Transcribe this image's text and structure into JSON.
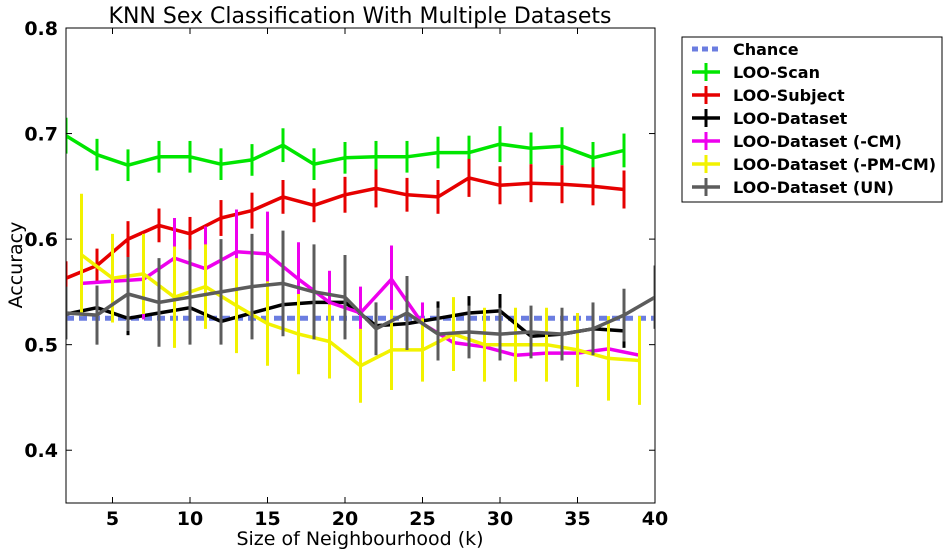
{
  "chart_data": {
    "type": "line",
    "title": "KNN Sex Classification With Multiple Datasets",
    "xlabel": "Size of Neighbourhood (k)",
    "ylabel": "Accuracy",
    "xlim": [
      2,
      40
    ],
    "ylim": [
      0.35,
      0.8
    ],
    "xticks": [
      5,
      10,
      15,
      20,
      25,
      30,
      35,
      40
    ],
    "yticks": [
      0.4,
      0.5,
      0.6,
      0.7,
      0.8
    ],
    "ytick_labels": [
      "0.4",
      "0.5",
      "0.6",
      "0.7",
      "0.8"
    ],
    "grid": false,
    "legend_position": "outside-right",
    "chance": {
      "name": "Chance",
      "value": 0.525,
      "color": "#6b7de0"
    },
    "series": [
      {
        "name": "LOO-Scan",
        "color": "#00e600",
        "x": [
          2,
          4,
          6,
          8,
          10,
          12,
          14,
          16,
          18,
          20,
          22,
          24,
          26,
          28,
          30,
          32,
          34,
          36,
          38
        ],
        "y": [
          0.698,
          0.68,
          0.67,
          0.678,
          0.678,
          0.671,
          0.675,
          0.689,
          0.671,
          0.677,
          0.678,
          0.678,
          0.682,
          0.682,
          0.69,
          0.686,
          0.688,
          0.677,
          0.684
        ],
        "err": [
          0.017,
          0.015,
          0.015,
          0.015,
          0.015,
          0.015,
          0.015,
          0.016,
          0.015,
          0.015,
          0.015,
          0.015,
          0.015,
          0.016,
          0.017,
          0.015,
          0.018,
          0.015,
          0.016
        ]
      },
      {
        "name": "LOO-Subject",
        "color": "#e60000",
        "x": [
          2,
          4,
          6,
          8,
          10,
          12,
          14,
          16,
          18,
          20,
          22,
          24,
          26,
          28,
          30,
          32,
          34,
          36,
          38
        ],
        "y": [
          0.563,
          0.575,
          0.6,
          0.613,
          0.605,
          0.62,
          0.627,
          0.64,
          0.632,
          0.642,
          0.648,
          0.642,
          0.64,
          0.658,
          0.651,
          0.653,
          0.652,
          0.65,
          0.647
        ],
        "err": [
          0.016,
          0.016,
          0.017,
          0.016,
          0.016,
          0.017,
          0.017,
          0.016,
          0.016,
          0.017,
          0.018,
          0.016,
          0.016,
          0.018,
          0.018,
          0.018,
          0.018,
          0.018,
          0.018
        ]
      },
      {
        "name": "LOO-Dataset",
        "color": "#000000",
        "x": [
          2,
          4,
          6,
          8,
          10,
          12,
          14,
          16,
          18,
          20,
          22,
          24,
          26,
          28,
          30,
          32,
          34,
          36,
          38
        ],
        "y": [
          0.529,
          0.535,
          0.525,
          0.53,
          0.535,
          0.522,
          0.53,
          0.538,
          0.54,
          0.54,
          0.518,
          0.52,
          0.525,
          0.53,
          0.532,
          0.508,
          0.51,
          0.515,
          0.513
        ],
        "err": [
          0.012,
          0.016,
          0.016,
          0.016,
          0.016,
          0.016,
          0.016,
          0.017,
          0.018,
          0.02,
          0.022,
          0.018,
          0.016,
          0.016,
          0.016,
          0.016,
          0.016,
          0.016,
          0.016
        ]
      },
      {
        "name": "LOO-Dataset (-CM)",
        "color": "#ee00ee",
        "x": [
          3,
          5,
          7,
          9,
          11,
          13,
          15,
          17,
          19,
          21,
          23,
          25,
          27,
          29,
          31,
          33,
          35,
          37,
          39
        ],
        "y": [
          0.558,
          0.56,
          0.562,
          0.582,
          0.572,
          0.588,
          0.586,
          0.562,
          0.54,
          0.53,
          0.562,
          0.52,
          0.502,
          0.498,
          0.49,
          0.492,
          0.492,
          0.496,
          0.49
        ],
        "err": [
          0.03,
          0.038,
          0.038,
          0.038,
          0.04,
          0.04,
          0.04,
          0.035,
          0.03,
          0.025,
          0.032,
          0.02,
          0.02,
          0.02,
          0.02,
          0.02,
          0.02,
          0.02,
          0.02
        ]
      },
      {
        "name": "LOO-Dataset (-PM-CM)",
        "color": "#f2f200",
        "x": [
          3,
          5,
          7,
          9,
          11,
          13,
          15,
          17,
          19,
          21,
          23,
          25,
          27,
          29,
          31,
          33,
          35,
          37,
          39
        ],
        "y": [
          0.585,
          0.563,
          0.567,
          0.545,
          0.555,
          0.537,
          0.52,
          0.51,
          0.503,
          0.48,
          0.495,
          0.495,
          0.51,
          0.5,
          0.5,
          0.5,
          0.495,
          0.487,
          0.485
        ],
        "err": [
          0.058,
          0.042,
          0.038,
          0.048,
          0.04,
          0.045,
          0.04,
          0.038,
          0.035,
          0.035,
          0.038,
          0.03,
          0.035,
          0.035,
          0.035,
          0.035,
          0.035,
          0.04,
          0.042
        ]
      },
      {
        "name": "LOO-Dataset (UN)",
        "color": "#5c5c5c",
        "x": [
          2,
          4,
          6,
          8,
          10,
          12,
          14,
          16,
          18,
          20,
          22,
          24,
          26,
          28,
          30,
          32,
          34,
          36,
          38,
          40
        ],
        "y": [
          0.53,
          0.528,
          0.548,
          0.54,
          0.545,
          0.55,
          0.555,
          0.558,
          0.55,
          0.545,
          0.515,
          0.53,
          0.51,
          0.512,
          0.51,
          0.512,
          0.51,
          0.515,
          0.528,
          0.545
        ],
        "err": [
          0.025,
          0.028,
          0.035,
          0.042,
          0.045,
          0.05,
          0.05,
          0.05,
          0.045,
          0.04,
          0.025,
          0.035,
          0.025,
          0.025,
          0.025,
          0.025,
          0.025,
          0.025,
          0.025,
          0.03
        ]
      }
    ]
  }
}
